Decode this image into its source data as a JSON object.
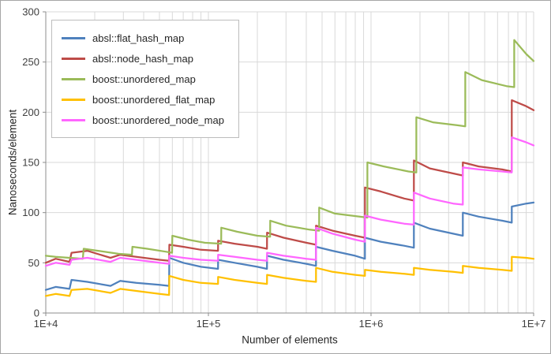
{
  "chart": {
    "background": "#ffffff",
    "border_color": "#a6a6a6",
    "grid_color": "#d9d9d9",
    "axis_color": "#8c8c8c",
    "text_color": "#3f3f3f"
  },
  "chart_data": {
    "type": "line",
    "title": "",
    "xlabel": "Number of elements",
    "ylabel": "Nanoseconds/element",
    "x_scale": "log",
    "xlim": [
      10000,
      10000000
    ],
    "ylim": [
      0,
      300
    ],
    "y_ticks": [
      0,
      50,
      100,
      150,
      200,
      250,
      300
    ],
    "x_ticks": [
      10000,
      100000,
      1000000,
      10000000
    ],
    "x_tick_labels": [
      "1E+4",
      "1E+5",
      "1E+6",
      "1E+7"
    ],
    "grid": true,
    "legend_position": "top-left",
    "series": [
      {
        "name": "absl::flat_hash_map",
        "color": "#4F81BD",
        "points": [
          [
            10000,
            23
          ],
          [
            11500,
            26
          ],
          [
            14000,
            24
          ],
          [
            14400,
            33
          ],
          [
            18000,
            31
          ],
          [
            25000,
            27
          ],
          [
            28700,
            32
          ],
          [
            36000,
            30
          ],
          [
            50000,
            28
          ],
          [
            57300,
            27
          ],
          [
            57500,
            55
          ],
          [
            70000,
            50
          ],
          [
            90000,
            46
          ],
          [
            114600,
            44
          ],
          [
            114800,
            53
          ],
          [
            145000,
            50
          ],
          [
            200000,
            46
          ],
          [
            229300,
            44
          ],
          [
            229500,
            57
          ],
          [
            290000,
            53
          ],
          [
            400000,
            49
          ],
          [
            458700,
            47
          ],
          [
            458900,
            66
          ],
          [
            580000,
            62
          ],
          [
            800000,
            57
          ],
          [
            917400,
            54
          ],
          [
            917600,
            75
          ],
          [
            1150000,
            71
          ],
          [
            1600000,
            67
          ],
          [
            1834900,
            65
          ],
          [
            1835100,
            90
          ],
          [
            2300000,
            84
          ],
          [
            3200000,
            79
          ],
          [
            3669900,
            77
          ],
          [
            3670100,
            100
          ],
          [
            4600000,
            96
          ],
          [
            6400000,
            92
          ],
          [
            7339900,
            90
          ],
          [
            7340100,
            106
          ],
          [
            9000000,
            109
          ],
          [
            10000000,
            110
          ]
        ]
      },
      {
        "name": "absl::node_hash_map",
        "color": "#BE4B48",
        "points": [
          [
            10000,
            50
          ],
          [
            11500,
            54
          ],
          [
            14000,
            51
          ],
          [
            14400,
            60
          ],
          [
            18000,
            62
          ],
          [
            25000,
            55
          ],
          [
            28700,
            58
          ],
          [
            36000,
            56
          ],
          [
            50000,
            53
          ],
          [
            57300,
            52
          ],
          [
            57500,
            68
          ],
          [
            70000,
            66
          ],
          [
            90000,
            63
          ],
          [
            114600,
            62
          ],
          [
            114800,
            72
          ],
          [
            145000,
            69
          ],
          [
            200000,
            66
          ],
          [
            229300,
            64
          ],
          [
            229500,
            80
          ],
          [
            290000,
            75
          ],
          [
            400000,
            70
          ],
          [
            458700,
            68
          ],
          [
            458900,
            87
          ],
          [
            580000,
            82
          ],
          [
            800000,
            77
          ],
          [
            917400,
            75
          ],
          [
            917600,
            125
          ],
          [
            1150000,
            121
          ],
          [
            1600000,
            114
          ],
          [
            1834900,
            112
          ],
          [
            1835100,
            152
          ],
          [
            2300000,
            144
          ],
          [
            3200000,
            139
          ],
          [
            3669900,
            137
          ],
          [
            3670100,
            150
          ],
          [
            4600000,
            146
          ],
          [
            6400000,
            143
          ],
          [
            7339900,
            141
          ],
          [
            7340100,
            212
          ],
          [
            9000000,
            206
          ],
          [
            10000000,
            202
          ]
        ]
      },
      {
        "name": "boost::unordered_map",
        "color": "#9BBB59",
        "points": [
          [
            10000,
            57
          ],
          [
            11500,
            56
          ],
          [
            14000,
            55
          ],
          [
            16900,
            54
          ],
          [
            17100,
            64
          ],
          [
            21000,
            62
          ],
          [
            28000,
            59
          ],
          [
            33900,
            58
          ],
          [
            34100,
            66
          ],
          [
            42000,
            64
          ],
          [
            55000,
            61
          ],
          [
            59800,
            60
          ],
          [
            60000,
            77
          ],
          [
            75000,
            73
          ],
          [
            95000,
            70
          ],
          [
            119800,
            69
          ],
          [
            120000,
            85
          ],
          [
            150000,
            81
          ],
          [
            200000,
            77
          ],
          [
            239800,
            76
          ],
          [
            240000,
            92
          ],
          [
            300000,
            87
          ],
          [
            420000,
            83
          ],
          [
            479800,
            82
          ],
          [
            480000,
            105
          ],
          [
            600000,
            99
          ],
          [
            850000,
            96
          ],
          [
            949800,
            95
          ],
          [
            950000,
            150
          ],
          [
            1200000,
            146
          ],
          [
            1700000,
            141
          ],
          [
            1899800,
            140
          ],
          [
            1900000,
            195
          ],
          [
            2400000,
            190
          ],
          [
            3400000,
            187
          ],
          [
            3799800,
            186
          ],
          [
            3800000,
            240
          ],
          [
            4800000,
            232
          ],
          [
            6800000,
            226
          ],
          [
            7599800,
            225
          ],
          [
            7600000,
            272
          ],
          [
            9000000,
            258
          ],
          [
            10000000,
            251
          ]
        ]
      },
      {
        "name": "boost::unordered_flat_map",
        "color": "#FFC000",
        "points": [
          [
            10000,
            17
          ],
          [
            11500,
            19
          ],
          [
            14000,
            17
          ],
          [
            14400,
            23
          ],
          [
            18000,
            24
          ],
          [
            25000,
            20
          ],
          [
            28700,
            24
          ],
          [
            36000,
            22
          ],
          [
            50000,
            19
          ],
          [
            57300,
            18
          ],
          [
            57500,
            37
          ],
          [
            70000,
            33
          ],
          [
            90000,
            30
          ],
          [
            114600,
            29
          ],
          [
            114800,
            36
          ],
          [
            145000,
            33
          ],
          [
            200000,
            30
          ],
          [
            229300,
            29
          ],
          [
            229500,
            38
          ],
          [
            290000,
            35
          ],
          [
            400000,
            32
          ],
          [
            458700,
            31
          ],
          [
            458900,
            45
          ],
          [
            580000,
            41
          ],
          [
            800000,
            38
          ],
          [
            917400,
            37
          ],
          [
            917600,
            43
          ],
          [
            1150000,
            41
          ],
          [
            1600000,
            39
          ],
          [
            1834900,
            38
          ],
          [
            1835100,
            45
          ],
          [
            2300000,
            43
          ],
          [
            3200000,
            41
          ],
          [
            3669900,
            40
          ],
          [
            3670100,
            47
          ],
          [
            4600000,
            45
          ],
          [
            6400000,
            43
          ],
          [
            7339900,
            42
          ],
          [
            7340100,
            56
          ],
          [
            9000000,
            55
          ],
          [
            10000000,
            54
          ]
        ]
      },
      {
        "name": "boost::unordered_node_map",
        "color": "#FF66FF",
        "points": [
          [
            10000,
            47
          ],
          [
            11500,
            50
          ],
          [
            14000,
            48
          ],
          [
            14400,
            53
          ],
          [
            18000,
            55
          ],
          [
            25000,
            51
          ],
          [
            28700,
            55
          ],
          [
            36000,
            53
          ],
          [
            50000,
            50
          ],
          [
            57300,
            49
          ],
          [
            57500,
            57
          ],
          [
            70000,
            55
          ],
          [
            90000,
            53
          ],
          [
            114600,
            52
          ],
          [
            114800,
            58
          ],
          [
            145000,
            56
          ],
          [
            200000,
            53
          ],
          [
            229300,
            52
          ],
          [
            229500,
            60
          ],
          [
            290000,
            57
          ],
          [
            400000,
            54
          ],
          [
            458700,
            53
          ],
          [
            458900,
            85
          ],
          [
            580000,
            79
          ],
          [
            800000,
            73
          ],
          [
            917400,
            71
          ],
          [
            917600,
            97
          ],
          [
            1150000,
            93
          ],
          [
            1600000,
            89
          ],
          [
            1834900,
            88
          ],
          [
            1835100,
            120
          ],
          [
            2300000,
            114
          ],
          [
            3200000,
            109
          ],
          [
            3669900,
            108
          ],
          [
            3670100,
            145
          ],
          [
            4600000,
            143
          ],
          [
            6400000,
            141
          ],
          [
            7339900,
            140
          ],
          [
            7340100,
            175
          ],
          [
            9000000,
            170
          ],
          [
            10000000,
            167
          ]
        ]
      }
    ]
  }
}
